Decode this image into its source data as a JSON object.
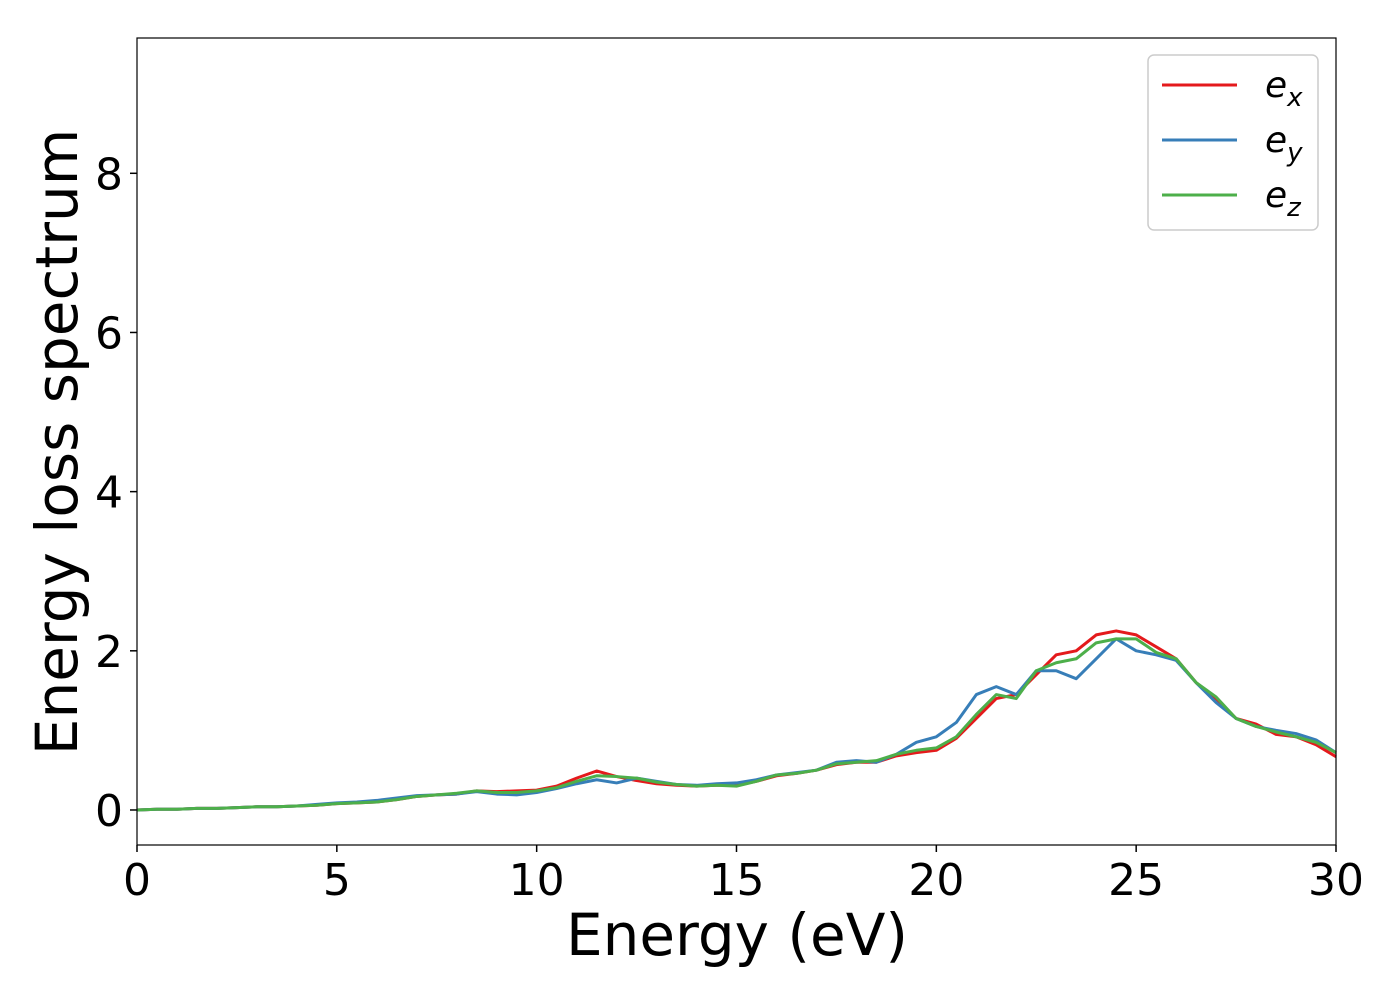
{
  "chart_data": {
    "type": "line",
    "xlabel": "Energy (eV)",
    "ylabel": "Energy loss spectrum",
    "xlim": [
      0,
      30
    ],
    "ylim": [
      -0.44,
      9.7
    ],
    "xticks": [
      0,
      5,
      10,
      15,
      20,
      25,
      30
    ],
    "yticks": [
      0,
      2,
      4,
      6,
      8
    ],
    "legend": "upper right",
    "x": [
      0,
      0.5,
      1,
      1.5,
      2,
      2.5,
      3,
      3.5,
      4,
      4.5,
      5,
      5.5,
      6,
      6.5,
      7,
      7.5,
      8,
      8.5,
      9,
      9.5,
      10,
      10.5,
      11,
      11.5,
      12,
      12.5,
      13,
      13.5,
      14,
      14.5,
      15,
      15.5,
      16,
      16.5,
      17,
      17.5,
      18,
      18.5,
      19,
      19.5,
      20,
      20.5,
      21,
      21.5,
      22,
      22.5,
      23,
      23.5,
      24,
      24.5,
      25,
      25.5,
      26,
      26.5,
      27,
      27.5,
      28,
      28.5,
      29,
      29.5,
      30
    ],
    "series": [
      {
        "name": "e_x",
        "color": "#e41a1c",
        "values": [
          0,
          0.01,
          0.01,
          0.02,
          0.02,
          0.03,
          0.04,
          0.04,
          0.05,
          0.06,
          0.08,
          0.09,
          0.1,
          0.13,
          0.17,
          0.19,
          0.2,
          0.24,
          0.23,
          0.24,
          0.25,
          0.3,
          0.4,
          0.49,
          0.42,
          0.37,
          0.33,
          0.31,
          0.3,
          0.31,
          0.31,
          0.36,
          0.43,
          0.46,
          0.5,
          0.57,
          0.6,
          0.6,
          0.68,
          0.72,
          0.75,
          0.9,
          1.15,
          1.4,
          1.45,
          1.7,
          1.95,
          2.0,
          2.2,
          2.25,
          2.2,
          2.05,
          1.9,
          1.6,
          1.4,
          1.15,
          1.08,
          0.95,
          0.92,
          0.82,
          0.67
        ]
      },
      {
        "name": "e_y",
        "color": "#377eb8",
        "values": [
          0,
          0.01,
          0.01,
          0.02,
          0.02,
          0.03,
          0.04,
          0.04,
          0.05,
          0.07,
          0.09,
          0.1,
          0.12,
          0.15,
          0.18,
          0.19,
          0.2,
          0.23,
          0.2,
          0.19,
          0.22,
          0.27,
          0.33,
          0.38,
          0.34,
          0.4,
          0.36,
          0.32,
          0.31,
          0.33,
          0.34,
          0.38,
          0.44,
          0.47,
          0.5,
          0.6,
          0.62,
          0.6,
          0.7,
          0.85,
          0.92,
          1.1,
          1.45,
          1.55,
          1.45,
          1.75,
          1.75,
          1.65,
          1.9,
          2.15,
          2.0,
          1.95,
          1.88,
          1.6,
          1.35,
          1.15,
          1.05,
          1.0,
          0.96,
          0.88,
          0.72
        ]
      },
      {
        "name": "e_z",
        "color": "#4daf4a",
        "values": [
          0,
          0.01,
          0.01,
          0.02,
          0.02,
          0.03,
          0.04,
          0.04,
          0.05,
          0.06,
          0.08,
          0.09,
          0.1,
          0.13,
          0.17,
          0.19,
          0.21,
          0.24,
          0.22,
          0.22,
          0.24,
          0.28,
          0.36,
          0.43,
          0.42,
          0.4,
          0.35,
          0.32,
          0.3,
          0.31,
          0.3,
          0.36,
          0.44,
          0.46,
          0.5,
          0.58,
          0.6,
          0.62,
          0.7,
          0.75,
          0.78,
          0.92,
          1.2,
          1.45,
          1.4,
          1.75,
          1.85,
          1.9,
          2.1,
          2.15,
          2.15,
          1.98,
          1.9,
          1.6,
          1.42,
          1.15,
          1.05,
          0.98,
          0.92,
          0.85,
          0.72
        ]
      }
    ]
  }
}
